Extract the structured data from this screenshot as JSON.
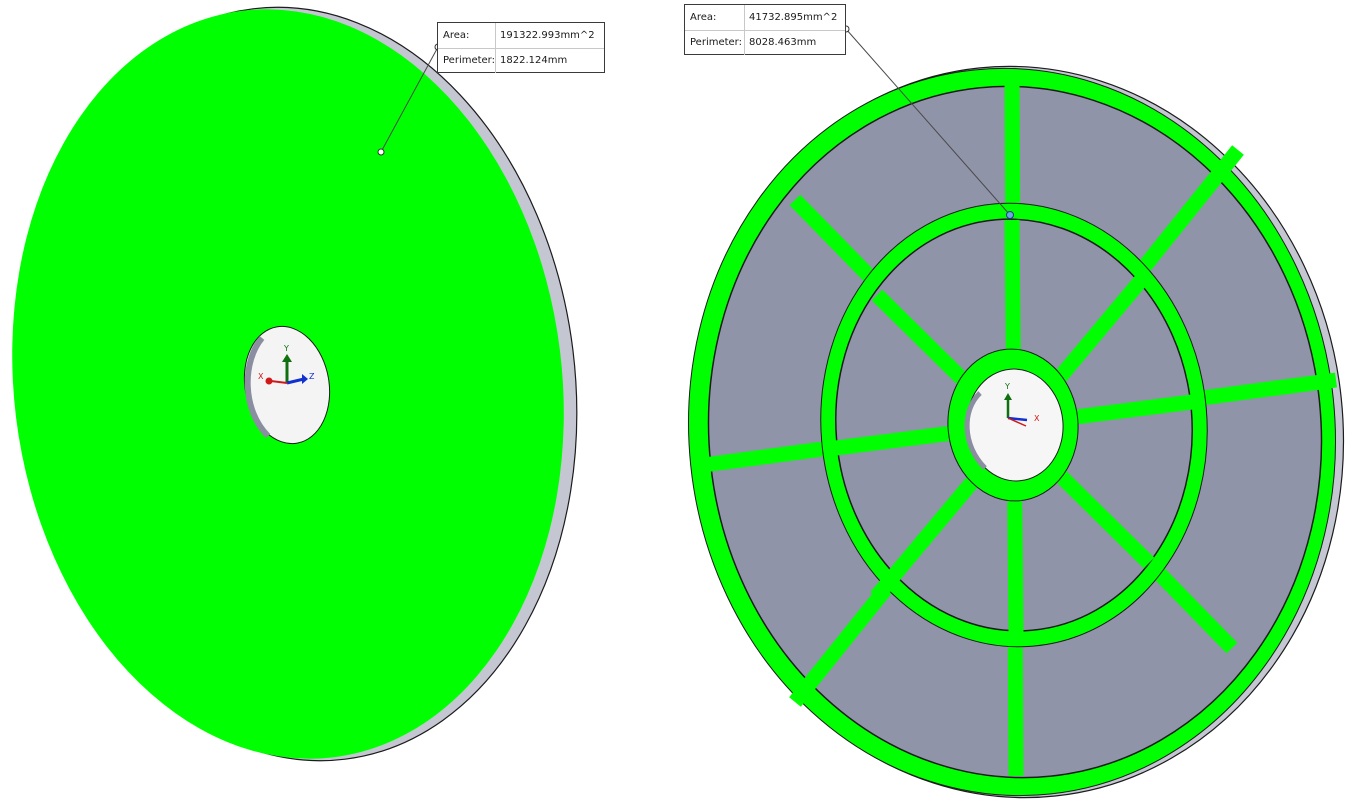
{
  "colors": {
    "highlight_face": "#00ff00",
    "body_face": "#9094a8",
    "edge": "#1c1c1c",
    "side_face": "#c4c6d2",
    "axis_x": "#d01818",
    "axis_y": "#107010",
    "axis_z": "#1030d0"
  },
  "left_callout": {
    "area_label": "Area:",
    "area_value": "191322.993mm^2",
    "perimeter_label": "Perimeter:",
    "perimeter_value": "1822.124mm"
  },
  "right_callout": {
    "area_label": "Area:",
    "area_value": "41732.895mm^2",
    "perimeter_label": "Perimeter:",
    "perimeter_value": "8028.463mm"
  },
  "triad": {
    "x_label": "X",
    "y_label": "Y",
    "z_label": "Z"
  }
}
